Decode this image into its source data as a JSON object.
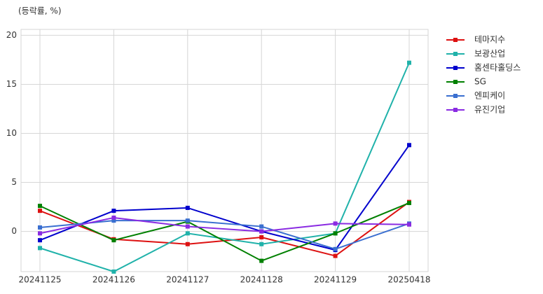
{
  "chart_data": {
    "type": "line",
    "y_label": "(등락률, %)",
    "categories": [
      "20241125",
      "20241126",
      "20241127",
      "20241128",
      "20241129",
      "20250418"
    ],
    "series": [
      {
        "name": "테마지수",
        "color": "#dd1111",
        "values": [
          2.1,
          -0.8,
          -1.3,
          -0.6,
          -2.5,
          3.0
        ]
      },
      {
        "name": "보광산업",
        "color": "#20b2aa",
        "values": [
          -1.7,
          -4.1,
          -0.2,
          -1.3,
          -0.2,
          17.2
        ]
      },
      {
        "name": "홈센타홀딩스",
        "color": "#0000cd",
        "values": [
          -0.9,
          2.1,
          2.4,
          0.0,
          -1.9,
          8.8
        ]
      },
      {
        "name": "SG",
        "color": "#008000",
        "values": [
          2.6,
          -0.9,
          1.0,
          -3.0,
          -0.2,
          2.9
        ]
      },
      {
        "name": "엔피케이",
        "color": "#3a6fd0",
        "values": [
          0.4,
          1.1,
          1.1,
          0.5,
          -1.8,
          0.8
        ]
      },
      {
        "name": "유진기업",
        "color": "#8a2be2",
        "values": [
          -0.2,
          1.4,
          0.5,
          0.0,
          0.8,
          0.7
        ]
      }
    ],
    "ylim": [
      -4.1,
      20.6
    ],
    "yticks": [
      0,
      5,
      10,
      15,
      20
    ],
    "grid": true
  }
}
